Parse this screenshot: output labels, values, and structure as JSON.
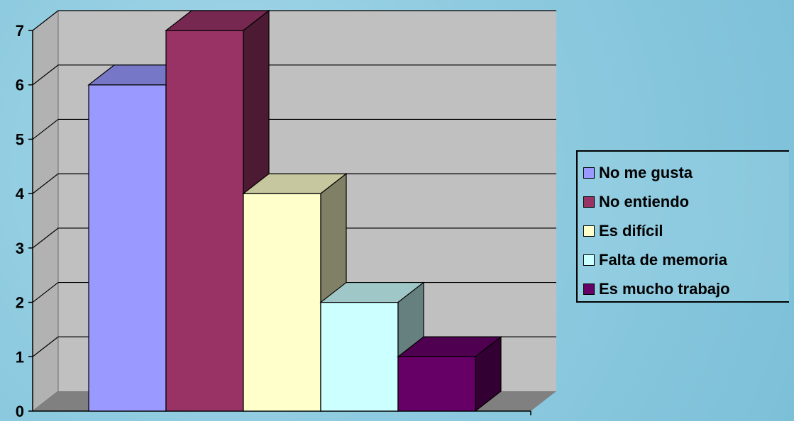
{
  "chart_data": {
    "type": "bar",
    "style": "3d-clustered-column",
    "categories": [
      ""
    ],
    "series": [
      {
        "name": "No me gusta",
        "values": [
          6
        ],
        "color": "#9999FF"
      },
      {
        "name": "No entiendo",
        "values": [
          7
        ],
        "color": "#993366"
      },
      {
        "name": "Es difícil",
        "values": [
          4
        ],
        "color": "#FFFFCC"
      },
      {
        "name": "Falta de memoria",
        "values": [
          2
        ],
        "color": "#CCFFFF"
      },
      {
        "name": "Es mucho trabajo",
        "values": [
          1
        ],
        "color": "#660066"
      }
    ],
    "ylim": [
      0,
      7
    ],
    "yticks": [
      "0",
      "1",
      "2",
      "3",
      "4",
      "5",
      "6",
      "7"
    ],
    "title": "",
    "xlabel": "",
    "ylabel": "",
    "grid": true,
    "legend_position": "right",
    "wall_color": "#C0C0C0",
    "floor_color": "#808080"
  }
}
